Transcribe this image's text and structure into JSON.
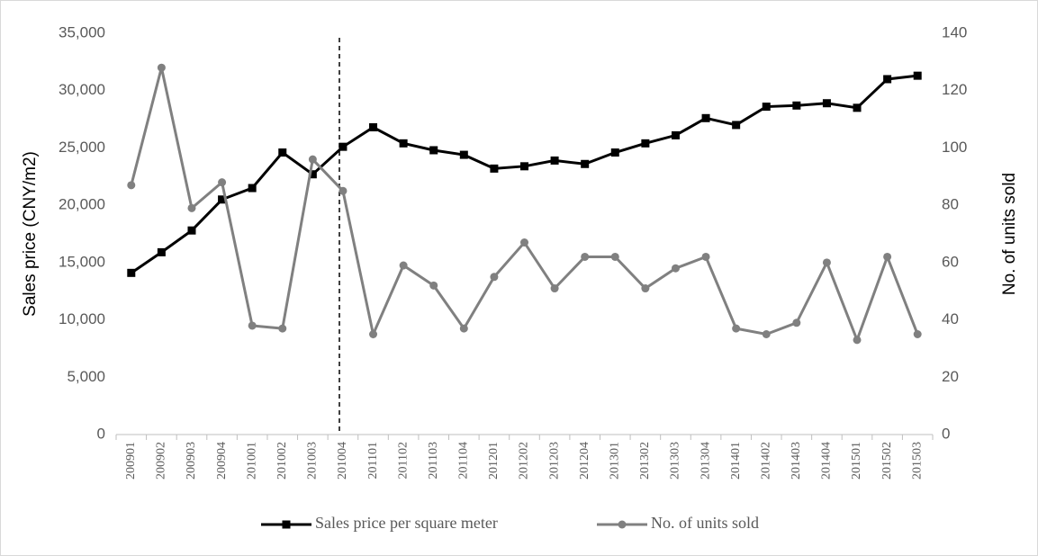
{
  "chart_data": {
    "type": "line",
    "categories": [
      "200901",
      "200902",
      "200903",
      "200904",
      "201001",
      "201002",
      "201003",
      "201004",
      "201101",
      "201102",
      "201103",
      "201104",
      "201201",
      "201202",
      "201203",
      "201204",
      "201301",
      "201302",
      "201303",
      "201304",
      "201401",
      "201402",
      "201403",
      "201404",
      "201501",
      "201502",
      "201503"
    ],
    "series": [
      {
        "name": "Sales price per square meter",
        "color": "#000000",
        "marker": "square",
        "values": [
          14100,
          15900,
          17800,
          20500,
          21500,
          24600,
          22700,
          25100,
          26800,
          25400,
          24800,
          24400,
          23200,
          23400,
          23900,
          23600,
          24600,
          25400,
          26100,
          27600,
          27000,
          28600,
          28700,
          28900,
          28500,
          31000,
          31300
        ]
      },
      {
        "name": "No. of units sold",
        "color": "#808080",
        "marker": "circle",
        "axis": "y2",
        "values": [
          87,
          128,
          79,
          88,
          38,
          37,
          96,
          85,
          35,
          59,
          52,
          37,
          55,
          67,
          51,
          62,
          62,
          51,
          58,
          62,
          37,
          35,
          39,
          60,
          33,
          62,
          35
        ]
      }
    ],
    "ylabel": "Sales price (CNY/m2)",
    "y2label": "No. of units sold",
    "ylim": [
      0,
      35000
    ],
    "yticks": [
      0,
      {
        "value": 5000,
        "label": "5,000"
      },
      {
        "value": 10000,
        "label": "10,000"
      },
      {
        "value": 15000,
        "label": "15,000"
      },
      {
        "value": 20000,
        "label": "20,000"
      },
      {
        "value": 25000,
        "label": "25,000"
      },
      {
        "value": 30000,
        "label": "30,000"
      },
      {
        "value": 35000,
        "label": "35,000"
      }
    ],
    "y2lim": [
      0,
      140
    ],
    "y2ticks": [
      0,
      20,
      40,
      60,
      80,
      100,
      120,
      140
    ],
    "legend": "bottom"
  }
}
